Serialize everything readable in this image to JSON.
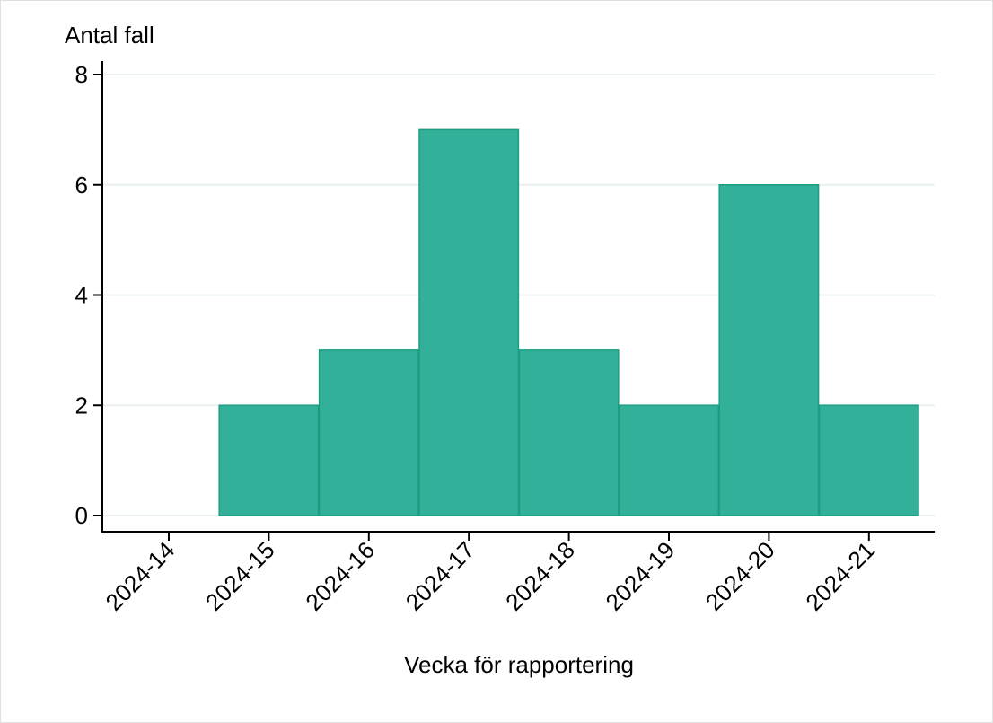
{
  "chart_data": {
    "type": "bar",
    "title": "",
    "xlabel": "Vecka för rapportering",
    "ylabel": "Antal fall",
    "categories": [
      "2024-14",
      "2024-15",
      "2024-16",
      "2024-17",
      "2024-18",
      "2024-19",
      "2024-20",
      "2024-21"
    ],
    "values": [
      0,
      2,
      3,
      7,
      3,
      2,
      6,
      2
    ],
    "ylim": [
      0,
      8
    ],
    "yticks": [
      0,
      2,
      4,
      6,
      8
    ],
    "grid": true,
    "legend": "none",
    "colors": {
      "bar_fill": "#33b09a",
      "bar_stroke": "#1a9e80",
      "grid": "#eaf0f0"
    }
  }
}
